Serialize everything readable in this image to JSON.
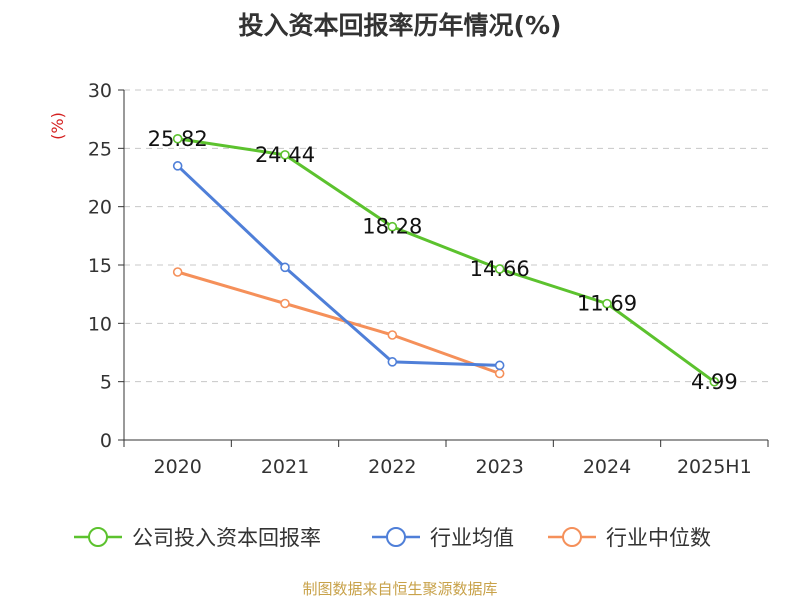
{
  "title": "投入资本回报率历年情况(%)",
  "source": "制图数据来自恒生聚源数据库",
  "chart_data": {
    "type": "line",
    "categories": [
      "2020",
      "2021",
      "2022",
      "2023",
      "2024",
      "2025H1"
    ],
    "ylabel": "(%)",
    "ylim": [
      0,
      30
    ],
    "yticks": [
      0,
      5,
      10,
      15,
      20,
      25,
      30
    ],
    "grid": true,
    "legend_position": "bottom",
    "series": [
      {
        "name": "公司投入资本回报率",
        "color": "#5cc22e",
        "values": [
          25.82,
          24.44,
          18.28,
          14.66,
          11.69,
          4.99
        ],
        "labels": [
          "25.82",
          "24.44",
          "18.28",
          "14.66",
          "11.69",
          "4.99"
        ]
      },
      {
        "name": "行业均值",
        "color": "#4f7fd8",
        "values": [
          23.5,
          14.8,
          6.7,
          6.4,
          null,
          null
        ]
      },
      {
        "name": "行业中位数",
        "color": "#f5905a",
        "values": [
          14.4,
          11.7,
          9.0,
          5.7,
          null,
          null
        ]
      }
    ]
  }
}
